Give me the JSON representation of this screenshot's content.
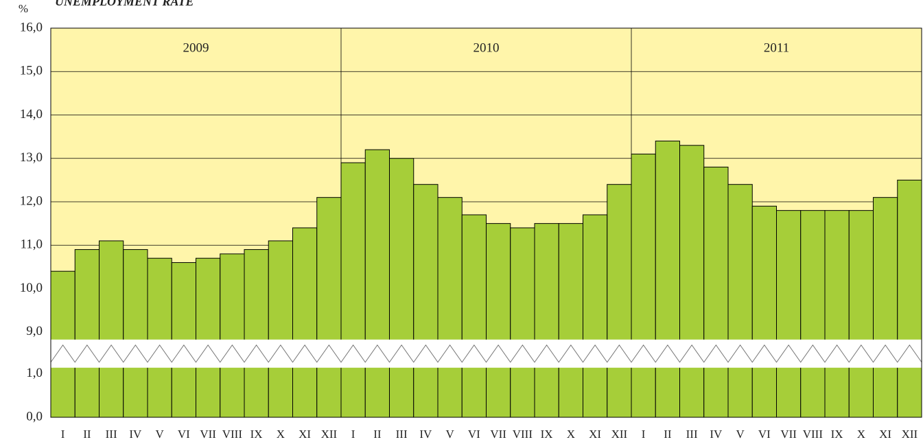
{
  "chart_data": {
    "type": "bar",
    "title": "UNEMPLOYMENT RATE",
    "y_label": "%",
    "year_labels": [
      "2009",
      "2010",
      "2011"
    ],
    "categories": [
      "I",
      "II",
      "III",
      "IV",
      "V",
      "VI",
      "VII",
      "VIII",
      "IX",
      "X",
      "XI",
      "XII",
      "I",
      "II",
      "III",
      "IV",
      "V",
      "VI",
      "VII",
      "VIII",
      "IX",
      "X",
      "XI",
      "XII",
      "I",
      "II",
      "III",
      "IV",
      "V",
      "VI",
      "VII",
      "VIII",
      "IX",
      "X",
      "XI",
      "XII"
    ],
    "values": [
      10.4,
      10.9,
      11.1,
      10.9,
      10.7,
      10.6,
      10.7,
      10.8,
      10.9,
      11.1,
      11.4,
      12.1,
      12.9,
      13.2,
      13.0,
      12.4,
      12.1,
      11.7,
      11.5,
      11.4,
      11.5,
      11.5,
      11.7,
      12.4,
      13.1,
      13.4,
      13.3,
      12.8,
      12.4,
      11.9,
      11.8,
      11.8,
      11.8,
      11.8,
      12.1,
      12.5
    ],
    "color": "#a6ce39",
    "background": "#fff5aa",
    "ylim": [
      0,
      16
    ],
    "yticks": [
      {
        "value": 0,
        "label": "0,0"
      },
      {
        "value": 1,
        "label": "1,0"
      },
      {
        "value": 9,
        "label": "9,0"
      },
      {
        "value": 10,
        "label": "10,0"
      },
      {
        "value": 11,
        "label": "11,0"
      },
      {
        "value": 12,
        "label": "12,0"
      },
      {
        "value": 13,
        "label": "13,0"
      },
      {
        "value": 14,
        "label": "14,0"
      },
      {
        "value": 15,
        "label": "15,0"
      },
      {
        "value": 16,
        "label": "16,0"
      }
    ],
    "grid": true
  }
}
